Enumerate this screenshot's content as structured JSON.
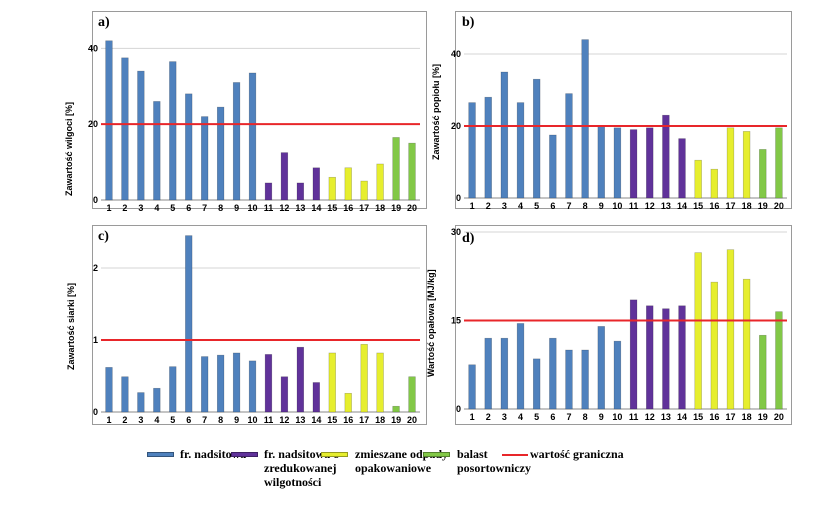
{
  "chart_data": [
    {
      "type": "bar",
      "panel": "a)",
      "title": "",
      "xlabel": "",
      "ylabel": "Zawartość wilgoci [%]",
      "categories": [
        "1",
        "2",
        "3",
        "4",
        "5",
        "6",
        "7",
        "8",
        "9",
        "10",
        "11",
        "12",
        "13",
        "14",
        "15",
        "16",
        "17",
        "18",
        "19",
        "20"
      ],
      "values": [
        42,
        37.5,
        34,
        26,
        36.5,
        28,
        22,
        24.5,
        31,
        33.5,
        4.5,
        12.5,
        4.5,
        8.5,
        6,
        8.5,
        5,
        9.5,
        16.5,
        15
      ],
      "ylim": [
        0,
        48
      ],
      "yticks": [
        "0",
        "20",
        "40"
      ],
      "yticks_values": [
        0,
        20,
        40
      ],
      "threshold": 20
    },
    {
      "type": "bar",
      "panel": "b)",
      "title": "",
      "xlabel": "",
      "ylabel": "Zawartość popiołu [%]",
      "categories": [
        "1",
        "2",
        "3",
        "4",
        "5",
        "6",
        "7",
        "8",
        "9",
        "10",
        "11",
        "12",
        "13",
        "14",
        "15",
        "16",
        "17",
        "18",
        "19",
        "20"
      ],
      "values": [
        26.5,
        28,
        35,
        26.5,
        33,
        17.5,
        29,
        44,
        20,
        19.5,
        19,
        19.5,
        23,
        16.5,
        10.5,
        8,
        19.5,
        18.5,
        13.5,
        19.5
      ],
      "ylim": [
        0,
        50
      ],
      "yticks": [
        "0",
        "20",
        "40"
      ],
      "yticks_values": [
        0,
        20,
        40
      ],
      "threshold": 20
    },
    {
      "type": "bar",
      "panel": "c)",
      "title": "",
      "xlabel": "",
      "ylabel": "Zawartość siarki [%]",
      "categories": [
        "1",
        "2",
        "3",
        "4",
        "5",
        "6",
        "7",
        "8",
        "9",
        "10",
        "11",
        "12",
        "13",
        "14",
        "15",
        "16",
        "17",
        "18",
        "19",
        "20"
      ],
      "values": [
        0.62,
        0.49,
        0.27,
        0.33,
        0.63,
        2.45,
        0.77,
        0.79,
        0.82,
        0.71,
        0.8,
        0.49,
        0.9,
        0.41,
        0.82,
        0.26,
        0.94,
        0.82,
        0.08,
        0.49
      ],
      "ylim": [
        0,
        2.5
      ],
      "yticks": [
        "0",
        "1",
        "2"
      ],
      "yticks_values": [
        0,
        1,
        2
      ],
      "threshold": 1
    },
    {
      "type": "bar",
      "panel": "d)",
      "title": "",
      "xlabel": "",
      "ylabel": "Wartość opałowa [MJ/kg]",
      "categories": [
        "1",
        "2",
        "3",
        "4",
        "5",
        "6",
        "7",
        "8",
        "9",
        "10",
        "11",
        "12",
        "13",
        "14",
        "15",
        "16",
        "17",
        "18",
        "19",
        "20"
      ],
      "values": [
        7.5,
        12,
        12,
        14.5,
        8.5,
        12,
        10,
        10,
        14,
        11.5,
        18.5,
        17.5,
        17,
        17.5,
        26.5,
        21.5,
        27,
        22,
        12.5,
        16.5
      ],
      "ylim": [
        0,
        30
      ],
      "yticks": [
        "0",
        "15",
        "30"
      ],
      "yticks_values": [
        0,
        15,
        30
      ],
      "threshold": 15
    }
  ],
  "colors": {
    "blue": "#4f81bd",
    "purple": "#60329a",
    "yellow": "#e6ee2e",
    "green": "#82c847",
    "threshold": "#e8262a",
    "grid": "#d4d4d4"
  },
  "bar_groups": [
    "blue",
    "blue",
    "blue",
    "blue",
    "blue",
    "blue",
    "blue",
    "blue",
    "blue",
    "blue",
    "purple",
    "purple",
    "purple",
    "purple",
    "yellow",
    "yellow",
    "yellow",
    "yellow",
    "green",
    "green"
  ],
  "legend": {
    "items": [
      {
        "label": "fr. nadsitowa",
        "color_key": "blue"
      },
      {
        "label": "fr. nadsitowa o zredukowanej wilgotności",
        "color_key": "purple"
      },
      {
        "label": "zmieszane odpady opakowaniowe",
        "color_key": "yellow"
      },
      {
        "label": "balast posortowniczy",
        "color_key": "green"
      },
      {
        "label": "wartość graniczna",
        "color_key": "threshold"
      }
    ]
  }
}
